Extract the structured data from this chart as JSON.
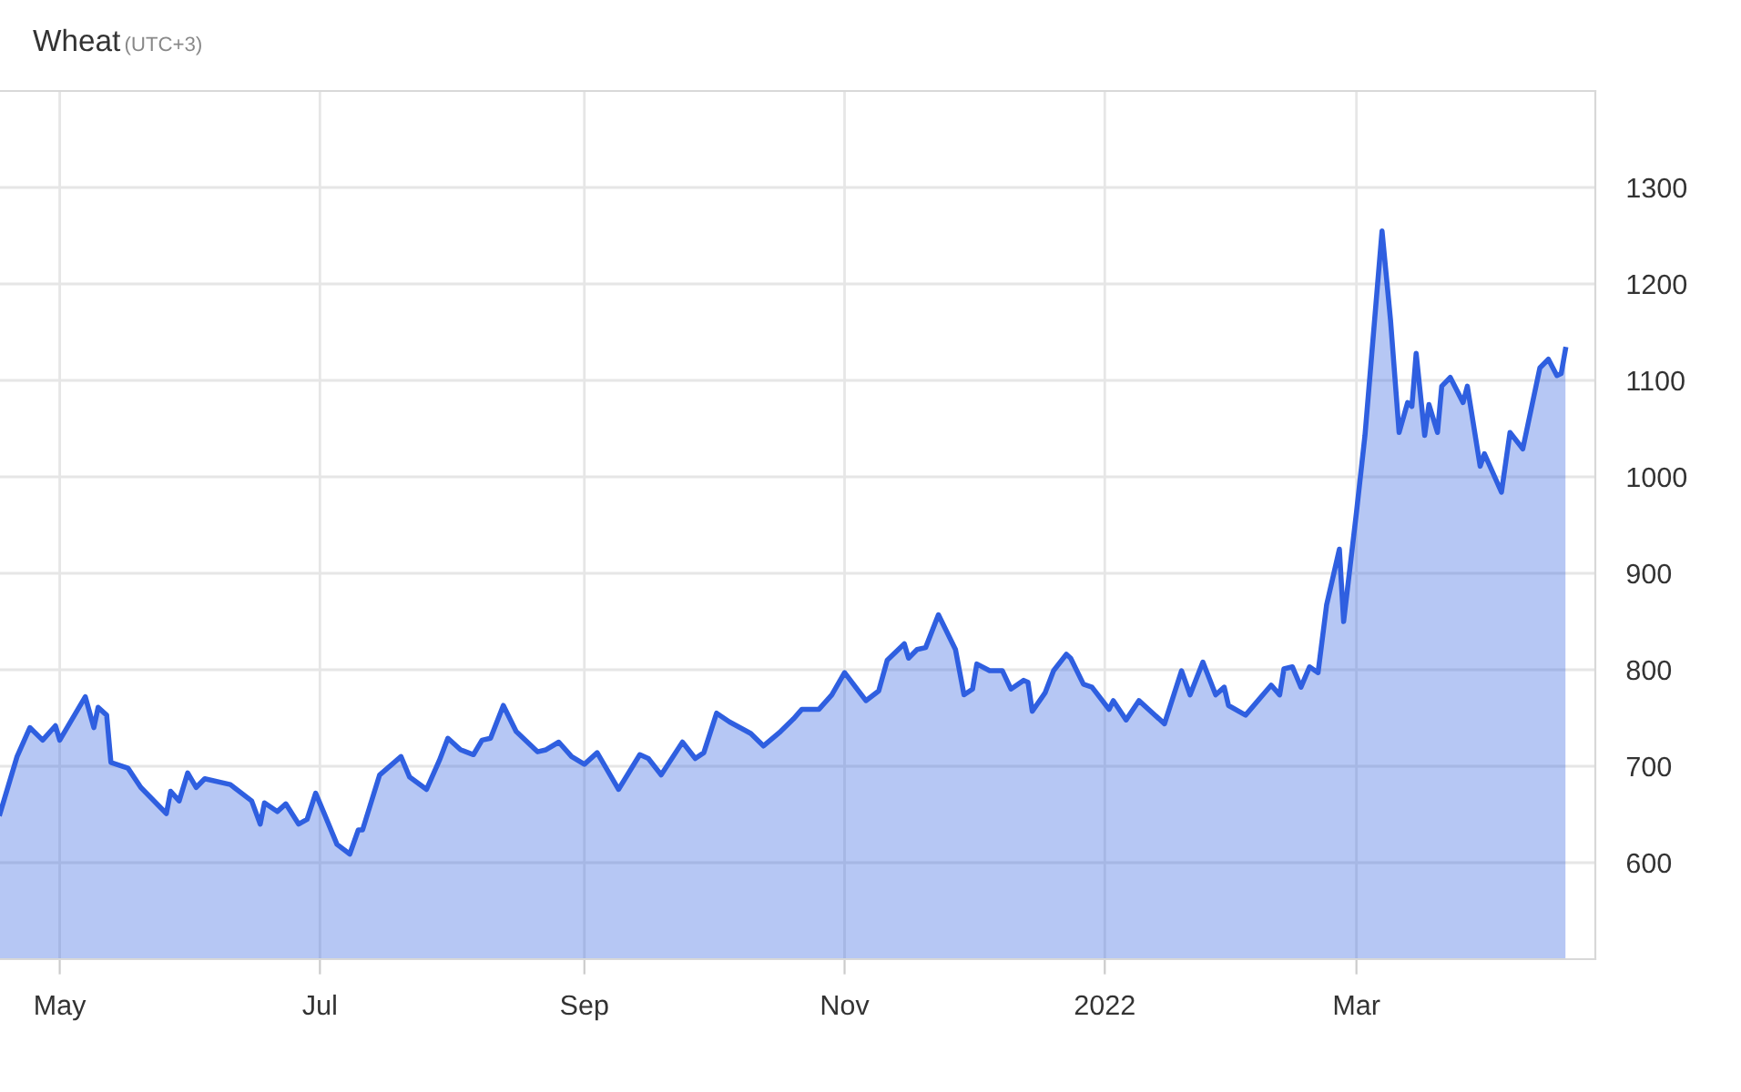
{
  "chart_data": {
    "type": "area",
    "title": "Wheat",
    "subtitle": "(UTC+3)",
    "x": [
      "2021-04-17",
      "2021-04-21",
      "2021-04-24",
      "2021-04-27",
      "2021-04-30",
      "2021-05-01",
      "2021-05-07",
      "2021-05-09",
      "2021-05-10",
      "2021-05-12",
      "2021-05-13",
      "2021-05-17",
      "2021-05-20",
      "2021-05-26",
      "2021-05-27",
      "2021-05-29",
      "2021-05-31",
      "2021-06-02",
      "2021-06-04",
      "2021-06-10",
      "2021-06-15",
      "2021-06-17",
      "2021-06-18",
      "2021-06-21",
      "2021-06-23",
      "2021-06-26",
      "2021-06-28",
      "2021-06-30",
      "2021-07-02",
      "2021-07-05",
      "2021-07-08",
      "2021-07-10",
      "2021-07-11",
      "2021-07-15",
      "2021-07-20",
      "2021-07-22",
      "2021-07-26",
      "2021-07-29",
      "2021-07-31",
      "2021-08-03",
      "2021-08-06",
      "2021-08-08",
      "2021-08-10",
      "2021-08-13",
      "2021-08-16",
      "2021-08-21",
      "2021-08-23",
      "2021-08-26",
      "2021-08-29",
      "2021-09-01",
      "2021-09-04",
      "2021-09-09",
      "2021-09-14",
      "2021-09-16",
      "2021-09-19",
      "2021-09-24",
      "2021-09-27",
      "2021-09-29",
      "2021-10-02",
      "2021-10-05",
      "2021-10-10",
      "2021-10-13",
      "2021-10-17",
      "2021-10-20",
      "2021-10-22",
      "2021-10-26",
      "2021-10-29",
      "2021-11-01",
      "2021-11-06",
      "2021-11-09",
      "2021-11-11",
      "2021-11-15",
      "2021-11-16",
      "2021-11-18",
      "2021-11-20",
      "2021-11-23",
      "2021-11-27",
      "2021-11-29",
      "2021-12-01",
      "2021-12-02",
      "2021-12-05",
      "2021-12-08",
      "2021-12-10",
      "2021-12-13",
      "2021-12-14",
      "2021-12-15",
      "2021-12-18",
      "2021-12-20",
      "2021-12-23",
      "2021-12-24",
      "2021-12-27",
      "2021-12-29",
      "2022-01-02",
      "2022-01-03",
      "2022-01-06",
      "2022-01-09",
      "2022-01-15",
      "2022-01-19",
      "2022-01-21",
      "2022-01-24",
      "2022-01-27",
      "2022-01-29",
      "2022-01-30",
      "2022-02-03",
      "2022-02-09",
      "2022-02-11",
      "2022-02-12",
      "2022-02-14",
      "2022-02-16",
      "2022-02-18",
      "2022-02-20",
      "2022-02-22",
      "2022-02-25",
      "2022-02-26",
      "2022-03-01",
      "2022-03-03",
      "2022-03-07",
      "2022-03-09",
      "2022-03-11",
      "2022-03-13",
      "2022-03-14",
      "2022-03-15",
      "2022-03-17",
      "2022-03-18",
      "2022-03-20",
      "2022-03-21",
      "2022-03-23",
      "2022-03-26",
      "2022-03-27",
      "2022-03-30",
      "2022-03-31",
      "2022-04-04",
      "2022-04-06",
      "2022-04-09",
      "2022-04-13",
      "2022-04-15",
      "2022-04-17",
      "2022-04-18",
      "2022-04-19"
    ],
    "series": [
      {
        "color": "#2f5fe0",
        "values": [
          651,
          710,
          740,
          727,
          742,
          727,
          772,
          740,
          761,
          753,
          704,
          698,
          678,
          651,
          674,
          664,
          693,
          678,
          687,
          681,
          664,
          640,
          662,
          653,
          661,
          640,
          645,
          672,
          651,
          619,
          609,
          634,
          634,
          691,
          710,
          689,
          676,
          706,
          729,
          717,
          712,
          727,
          729,
          763,
          736,
          715,
          717,
          725,
          710,
          702,
          714,
          676,
          712,
          708,
          691,
          725,
          708,
          714,
          755,
          746,
          734,
          721,
          736,
          749,
          759,
          759,
          774,
          797,
          768,
          778,
          810,
          827,
          812,
          821,
          823,
          857,
          821,
          774,
          780,
          806,
          799,
          799,
          780,
          789,
          787,
          757,
          776,
          799,
          816,
          812,
          785,
          782,
          759,
          768,
          748,
          768,
          744,
          799,
          774,
          808,
          774,
          782,
          763,
          753,
          784,
          774,
          801,
          803,
          782,
          803,
          797,
          867,
          925,
          850,
          963,
          1043,
          1255,
          1162,
          1046,
          1077,
          1073,
          1128,
          1043,
          1075,
          1046,
          1094,
          1103,
          1077,
          1094,
          1011,
          1024,
          984,
          1046,
          1029,
          1113,
          1122,
          1105,
          1107,
          1132
        ]
      }
    ],
    "xlim": [
      "2021-04-17",
      "2022-04-26"
    ],
    "xticks": [
      {
        "value": "2021-05-01",
        "label": "May"
      },
      {
        "value": "2021-07-01",
        "label": "Jul"
      },
      {
        "value": "2021-09-01",
        "label": "Sep"
      },
      {
        "value": "2021-11-01",
        "label": "Nov"
      },
      {
        "value": "2022-01-01",
        "label": "2022"
      },
      {
        "value": "2022-03-01",
        "label": "Mar"
      }
    ],
    "ylim": [
      500,
      1400
    ],
    "yticks": [
      600,
      700,
      800,
      900,
      1000,
      1100,
      1200,
      1300
    ],
    "grid": true,
    "marker": "none",
    "line_style": "solid"
  }
}
